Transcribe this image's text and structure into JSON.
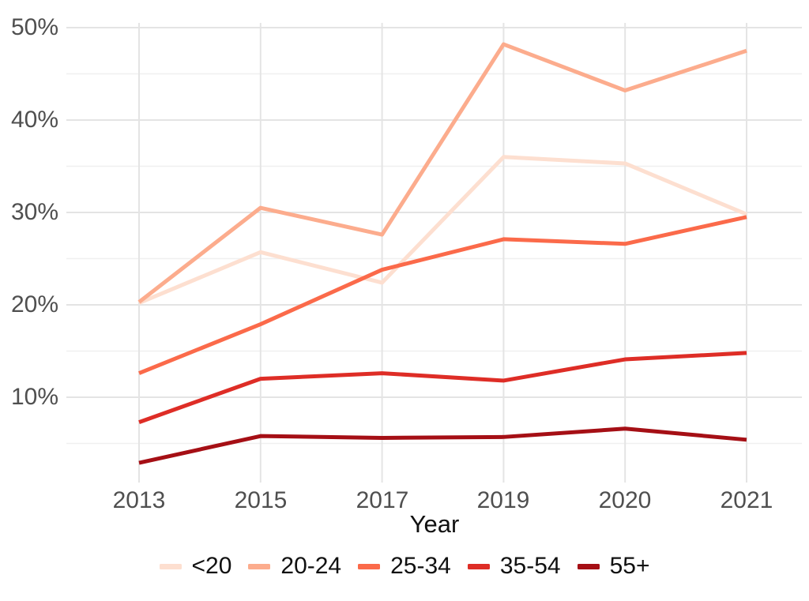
{
  "chart_data": {
    "type": "line",
    "title": "",
    "xlabel": "Year",
    "ylabel": "",
    "x_categories": [
      "2013",
      "2015",
      "2017",
      "2019",
      "2020",
      "2021"
    ],
    "y_tick_labels": [
      "50%",
      "40%",
      "30%",
      "20%",
      "10%"
    ],
    "y_tick_values": [
      50,
      40,
      30,
      20,
      10
    ],
    "y_minor_tick_values": [
      45,
      35,
      25,
      15,
      5
    ],
    "y_range": [
      0.6,
      50.6
    ],
    "y_format": "percent",
    "grid": "major and minor horizontal lines, vertical lines at each year, light gray on white",
    "legend_position": "bottom",
    "series": [
      {
        "name": "<20",
        "color": "#FDDFD0",
        "values": [
          20.2,
          25.7,
          22.4,
          36.0,
          35.3,
          29.8
        ]
      },
      {
        "name": "20-24",
        "color": "#FCAC8D",
        "values": [
          20.3,
          30.5,
          27.6,
          48.2,
          43.2,
          47.5
        ]
      },
      {
        "name": "25-34",
        "color": "#FB6A4A",
        "values": [
          12.6,
          17.9,
          23.8,
          27.1,
          26.6,
          29.5
        ]
      },
      {
        "name": "35-54",
        "color": "#DE2D26",
        "values": [
          7.3,
          12.0,
          12.6,
          11.8,
          14.1,
          14.8
        ]
      },
      {
        "name": "55+",
        "color": "#A50F15",
        "values": [
          2.9,
          5.8,
          5.6,
          5.7,
          6.6,
          5.4
        ]
      }
    ]
  },
  "colors": {
    "background": "#FFFFFF",
    "grid_major": "#E4E4E4",
    "grid_minor": "#F0F0F0",
    "tick_label": "#4F4F4F",
    "axis_title": "#111111",
    "legend_text": "#111111"
  }
}
